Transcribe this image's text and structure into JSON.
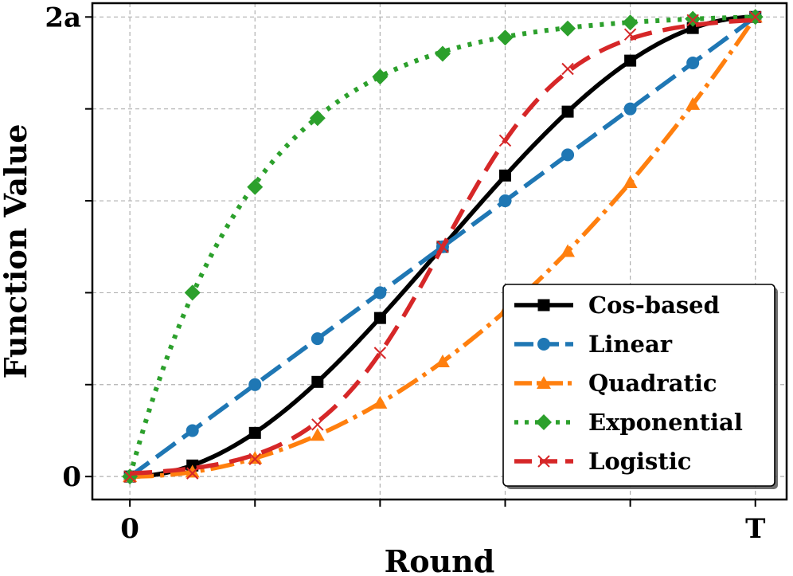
{
  "chart_data": {
    "type": "line",
    "title": "",
    "xlabel": "Round",
    "ylabel": "Function Value",
    "x_tick_labels": [
      {
        "value": 0,
        "label": "0"
      },
      {
        "value": 1,
        "label": "T"
      }
    ],
    "y_tick_labels": [
      {
        "value": 0,
        "label": "0"
      },
      {
        "value": 1,
        "label": "2a"
      }
    ],
    "xlim": [
      -0.06,
      1.05
    ],
    "ylim": [
      -0.05,
      1.03
    ],
    "grid": true,
    "legend_position": "lower-right",
    "series": [
      {
        "name": "Cos-based",
        "color": "#000000",
        "dash": "",
        "marker": "square",
        "curve": "cos",
        "x": [
          0,
          0.1,
          0.2,
          0.3,
          0.4,
          0.5,
          0.6,
          0.7,
          0.8,
          0.9,
          1.0
        ],
        "y": [
          0,
          0.024,
          0.095,
          0.206,
          0.345,
          0.5,
          0.655,
          0.794,
          0.905,
          0.976,
          1.0
        ]
      },
      {
        "name": "Linear",
        "color": "#1f77b4",
        "dash": "30 11",
        "marker": "circle",
        "curve": "linear",
        "x": [
          0,
          0.1,
          0.2,
          0.3,
          0.4,
          0.5,
          0.6,
          0.7,
          0.8,
          0.9,
          1.0
        ],
        "y": [
          0,
          0.1,
          0.2,
          0.3,
          0.4,
          0.5,
          0.6,
          0.7,
          0.8,
          0.9,
          1.0
        ]
      },
      {
        "name": "Quadratic",
        "color": "#ff7f0e",
        "dash": "30 8 5 8",
        "marker": "triangle",
        "curve": "quadratic",
        "x": [
          0,
          0.1,
          0.2,
          0.3,
          0.4,
          0.5,
          0.6,
          0.7,
          0.8,
          0.9,
          1.0
        ],
        "y": [
          0,
          0.01,
          0.04,
          0.09,
          0.16,
          0.25,
          0.36,
          0.49,
          0.64,
          0.81,
          1.0
        ]
      },
      {
        "name": "Exponential",
        "color": "#2ca02c",
        "dash": "5 9",
        "marker": "diamond",
        "curve": "exponential",
        "x": [
          0,
          0.1,
          0.2,
          0.3,
          0.4,
          0.5,
          0.6,
          0.7,
          0.8,
          0.9,
          1.0
        ],
        "y": [
          0,
          0.4,
          0.63,
          0.78,
          0.87,
          0.92,
          0.955,
          0.975,
          0.988,
          0.996,
          1.0
        ]
      },
      {
        "name": "Logistic",
        "color": "#d62728",
        "dash": "28 14",
        "marker": "x",
        "curve": "logistic",
        "x": [
          0,
          0.1,
          0.2,
          0.3,
          0.4,
          0.5,
          0.6,
          0.7,
          0.8,
          0.9,
          1.0
        ],
        "y": [
          0,
          0.007,
          0.038,
          0.113,
          0.269,
          0.5,
          0.731,
          0.887,
          0.962,
          0.993,
          1.0
        ]
      }
    ]
  }
}
